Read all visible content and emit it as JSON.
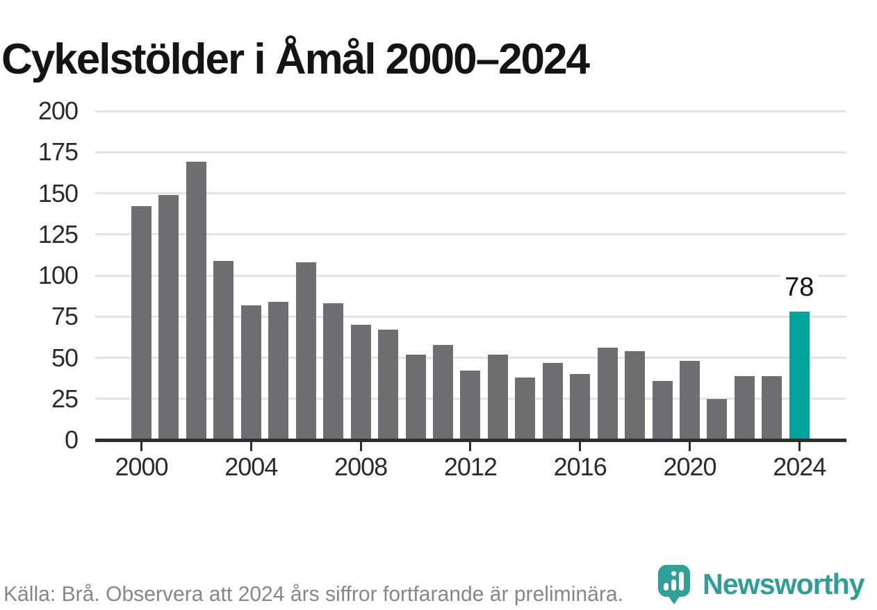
{
  "title": "Cykelstölder i Åmål 2000–2024",
  "chart_data": {
    "type": "bar",
    "title": "Cykelstölder i Åmål 2000–2024",
    "categories": [
      2000,
      2001,
      2002,
      2003,
      2004,
      2005,
      2006,
      2007,
      2008,
      2009,
      2010,
      2011,
      2012,
      2013,
      2014,
      2015,
      2016,
      2017,
      2018,
      2019,
      2020,
      2021,
      2022,
      2023,
      2024
    ],
    "values": [
      142,
      149,
      169,
      109,
      82,
      84,
      108,
      83,
      70,
      67,
      52,
      58,
      42,
      52,
      38,
      47,
      40,
      56,
      54,
      36,
      48,
      25,
      39,
      39,
      78
    ],
    "xlabel": "",
    "ylabel": "",
    "ylim": [
      0,
      200
    ],
    "yticks": [
      0,
      25,
      50,
      75,
      100,
      125,
      150,
      175,
      200
    ],
    "xtick_years": [
      2000,
      2004,
      2008,
      2012,
      2016,
      2020,
      2024
    ],
    "grid": true,
    "legend": "none",
    "bar_color_default": "#6e6e73",
    "bar_color_highlight": "#00a39b",
    "highlight_index": 24,
    "annotation": {
      "text": "78",
      "index": 24
    }
  },
  "footer": {
    "source_text": "Källa: Brå. Observera att 2024 års siffror fortfarande är preliminära.",
    "logo": {
      "wordmark": "Newsworthy",
      "icon": "newsworthy-speech-bubble-barchart-icon",
      "color": "#2f9e97"
    }
  }
}
